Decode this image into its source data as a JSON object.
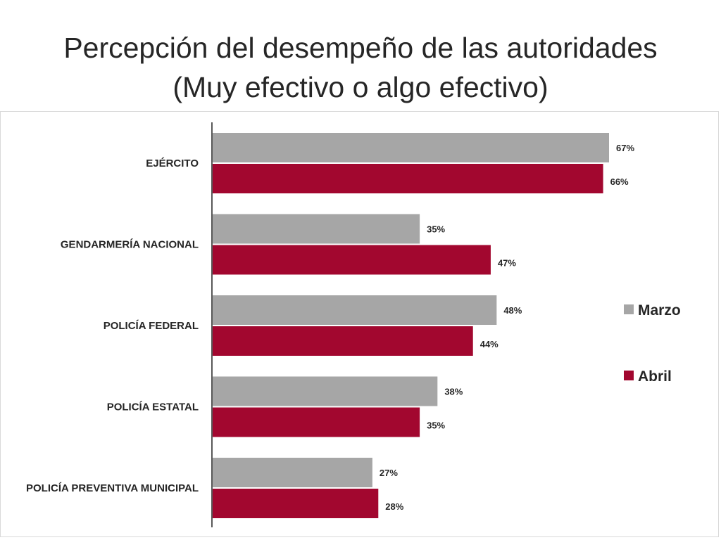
{
  "title": {
    "line1": "Percepción del desempeño de las autoridades",
    "line2": "(Muy efectivo o algo efectivo)"
  },
  "chart_data": {
    "type": "bar",
    "orientation": "horizontal",
    "categories": [
      "EJÉRCITO",
      "GENDARMERÍA NACIONAL",
      "POLICÍA FEDERAL",
      "POLICÍA ESTATAL",
      "POLICÍA PREVENTIVA MUNICIPAL"
    ],
    "series": [
      {
        "name": "Marzo",
        "color": "#a6a6a6",
        "values": [
          67,
          35,
          48,
          38,
          27
        ],
        "labels": [
          "67%",
          "35%",
          "48%",
          "38%",
          "27%"
        ]
      },
      {
        "name": "Abril",
        "color": "#a2072f",
        "values": [
          66,
          47,
          44,
          35,
          28
        ],
        "labels": [
          "66%",
          "47%",
          "44%",
          "35%",
          "28%"
        ]
      }
    ],
    "xlim": [
      0,
      70
    ],
    "grid": false,
    "legend_position": "right"
  }
}
